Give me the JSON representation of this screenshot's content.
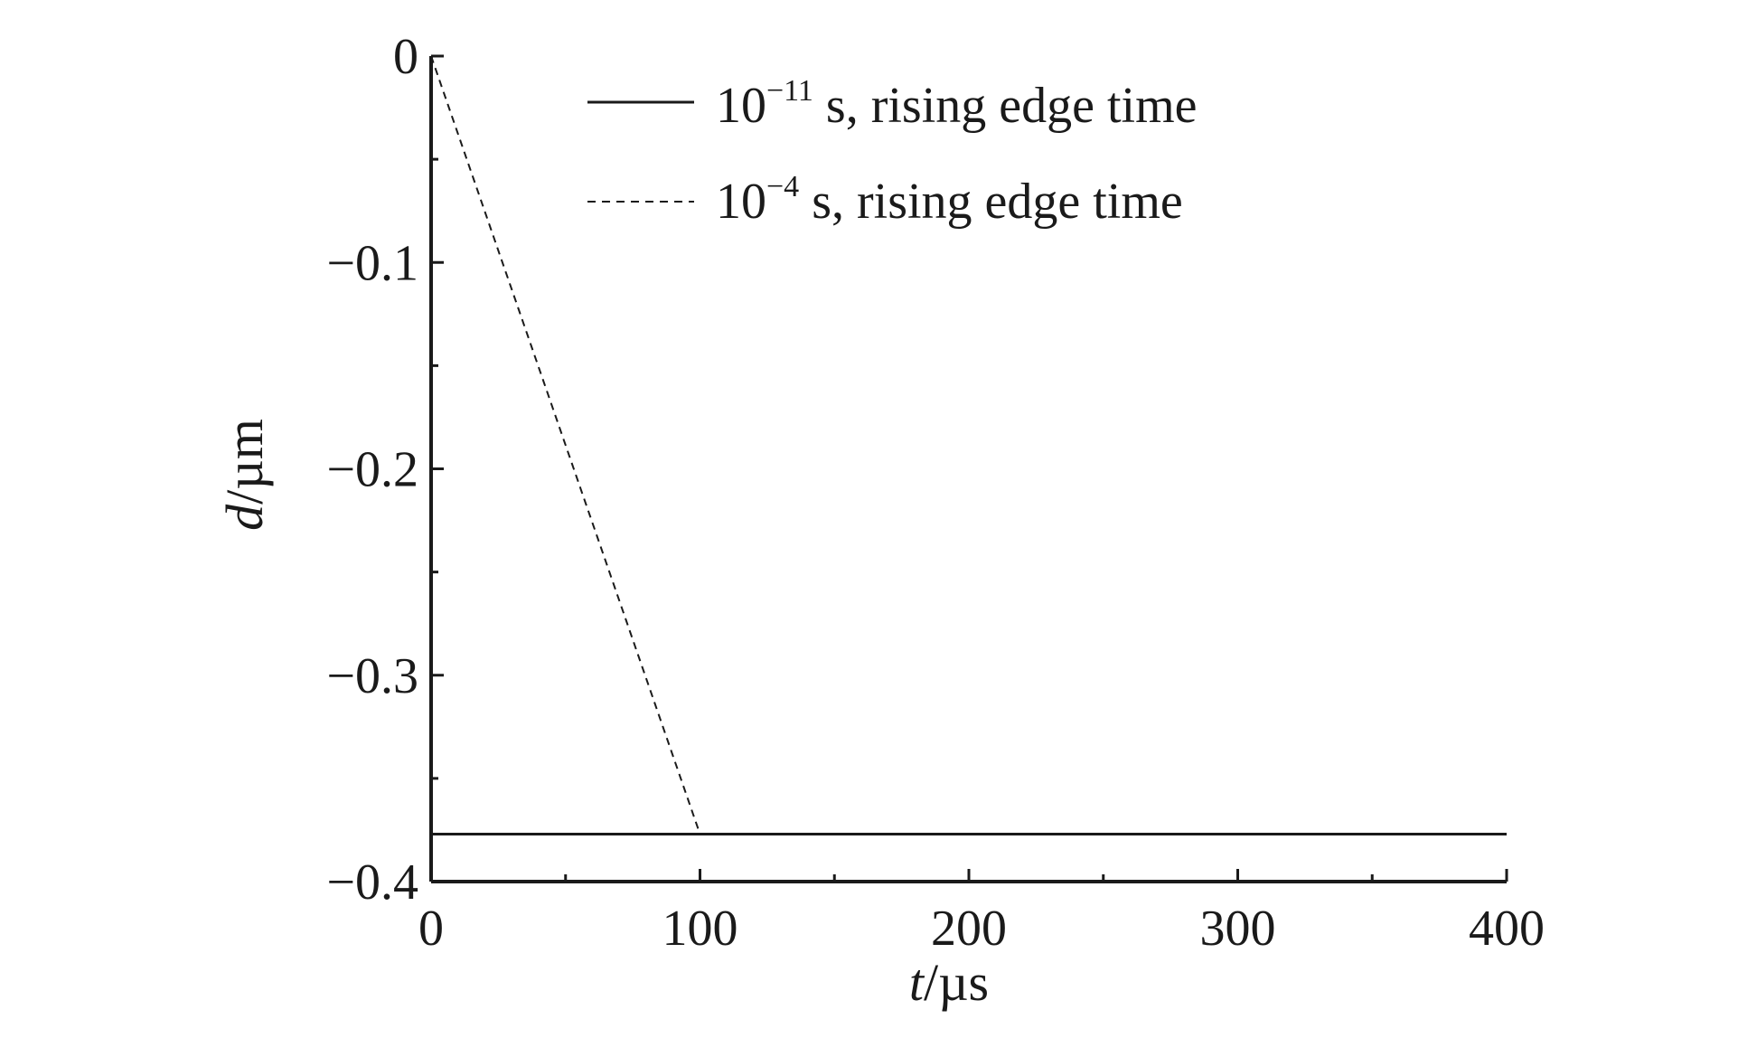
{
  "chart_data": {
    "type": "line",
    "xlabel": {
      "var": "t",
      "unit": "/µs"
    },
    "ylabel": {
      "var": "d",
      "unit": "/µm"
    },
    "xlim": [
      0,
      400
    ],
    "ylim": [
      -0.4,
      0
    ],
    "x_ticks": [
      0,
      100,
      200,
      300,
      400
    ],
    "x_tick_labels": [
      "0",
      "100",
      "200",
      "300",
      "400"
    ],
    "x_minor_step": 50,
    "y_ticks": [
      0,
      -0.1,
      -0.2,
      -0.3,
      -0.4
    ],
    "y_tick_labels": [
      "0",
      "−0.1",
      "−0.2",
      "−0.3",
      "−0.4"
    ],
    "y_minor_step": 0.05,
    "grid": false,
    "legend_position": "top",
    "series": [
      {
        "name": {
          "base": "10",
          "exp": "−11",
          "rest": " s, rising edge time"
        },
        "style": "solid",
        "color": "#1a1a1a",
        "x": [
          0,
          400
        ],
        "y": [
          -0.377,
          -0.377
        ]
      },
      {
        "name": {
          "base": "10",
          "exp": "−4",
          "rest": " s, rising edge time"
        },
        "style": "dashed",
        "color": "#1a1a1a",
        "x": [
          0,
          100,
          400
        ],
        "y": [
          0,
          -0.377,
          -0.377
        ]
      }
    ]
  }
}
